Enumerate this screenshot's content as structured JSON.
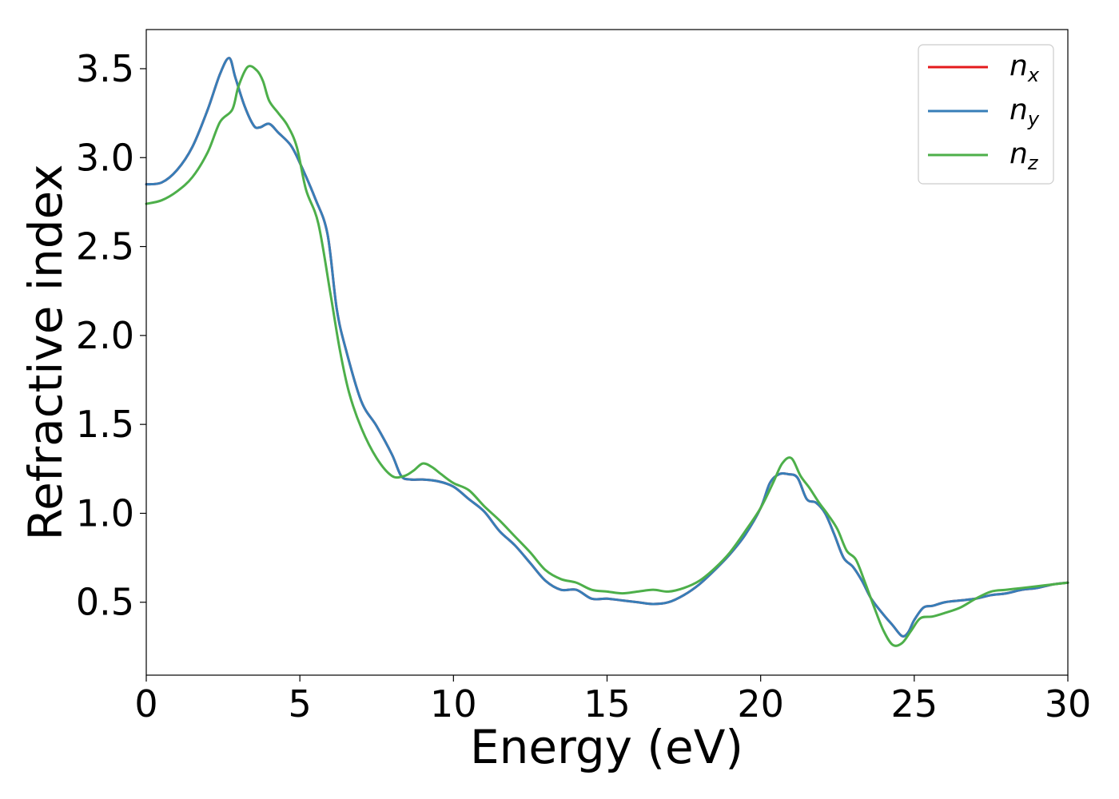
{
  "chart_data": {
    "type": "line",
    "title": "",
    "xlabel": "Energy (eV)",
    "ylabel": "Refractive index",
    "xlim": [
      0,
      30
    ],
    "ylim": [
      0.09,
      3.72
    ],
    "xticks": [
      0,
      5,
      10,
      15,
      20,
      25,
      30
    ],
    "xtick_labels": [
      "0",
      "5",
      "10",
      "15",
      "20",
      "25",
      "30"
    ],
    "yticks": [
      0.5,
      1.0,
      1.5,
      2.0,
      2.5,
      3.0,
      3.5
    ],
    "ytick_labels": [
      "0.5",
      "1.0",
      "1.5",
      "2.0",
      "2.5",
      "3.0",
      "3.5"
    ],
    "grid": false,
    "legend_position": "top-right",
    "series": [
      {
        "name": "n_x",
        "label_base": "n",
        "label_sub": "x",
        "color": "#e41a1c",
        "x": [
          0,
          0.5,
          1.0,
          1.5,
          2.0,
          2.4,
          2.7,
          2.9,
          3.2,
          3.5,
          3.7,
          4.0,
          4.3,
          4.7,
          5.0,
          5.5,
          5.9,
          6.2,
          6.5,
          7.0,
          7.5,
          8.0,
          8.3,
          8.6,
          9.0,
          9.5,
          10.0,
          10.5,
          11.0,
          11.5,
          12.0,
          12.5,
          13.0,
          13.5,
          14.0,
          14.5,
          15.0,
          15.5,
          16.0,
          16.5,
          17.0,
          17.5,
          18.0,
          18.5,
          19.0,
          19.5,
          20.0,
          20.3,
          20.6,
          20.9,
          21.2,
          21.5,
          21.8,
          22.1,
          22.4,
          22.7,
          23.0,
          23.3,
          23.6,
          24.0,
          24.3,
          24.6,
          24.8,
          25.0,
          25.3,
          25.6,
          26.0,
          26.5,
          27.0,
          27.5,
          28.0,
          28.5,
          29.0,
          29.5,
          30.0
        ],
        "y": [
          2.85,
          2.86,
          2.93,
          3.06,
          3.27,
          3.47,
          3.56,
          3.45,
          3.29,
          3.18,
          3.17,
          3.19,
          3.14,
          3.07,
          2.97,
          2.77,
          2.57,
          2.15,
          1.92,
          1.63,
          1.49,
          1.33,
          1.21,
          1.19,
          1.19,
          1.18,
          1.15,
          1.08,
          1.01,
          0.9,
          0.82,
          0.72,
          0.62,
          0.57,
          0.57,
          0.52,
          0.52,
          0.51,
          0.5,
          0.49,
          0.5,
          0.54,
          0.6,
          0.68,
          0.77,
          0.88,
          1.03,
          1.17,
          1.22,
          1.22,
          1.2,
          1.08,
          1.06,
          1.0,
          0.88,
          0.75,
          0.7,
          0.62,
          0.52,
          0.43,
          0.37,
          0.31,
          0.33,
          0.4,
          0.47,
          0.48,
          0.5,
          0.51,
          0.52,
          0.54,
          0.55,
          0.57,
          0.58,
          0.6,
          0.61
        ]
      },
      {
        "name": "n_y",
        "label_base": "n",
        "label_sub": "y",
        "color": "#377eb8",
        "x": [
          0,
          0.5,
          1.0,
          1.5,
          2.0,
          2.4,
          2.7,
          2.9,
          3.2,
          3.5,
          3.7,
          4.0,
          4.3,
          4.7,
          5.0,
          5.5,
          5.9,
          6.2,
          6.5,
          7.0,
          7.5,
          8.0,
          8.3,
          8.6,
          9.0,
          9.5,
          10.0,
          10.5,
          11.0,
          11.5,
          12.0,
          12.5,
          13.0,
          13.5,
          14.0,
          14.5,
          15.0,
          15.5,
          16.0,
          16.5,
          17.0,
          17.5,
          18.0,
          18.5,
          19.0,
          19.5,
          20.0,
          20.3,
          20.6,
          20.9,
          21.2,
          21.5,
          21.8,
          22.1,
          22.4,
          22.7,
          23.0,
          23.3,
          23.6,
          24.0,
          24.3,
          24.6,
          24.8,
          25.0,
          25.3,
          25.6,
          26.0,
          26.5,
          27.0,
          27.5,
          28.0,
          28.5,
          29.0,
          29.5,
          30.0
        ],
        "y": [
          2.85,
          2.86,
          2.93,
          3.06,
          3.27,
          3.47,
          3.56,
          3.45,
          3.29,
          3.18,
          3.17,
          3.19,
          3.14,
          3.07,
          2.97,
          2.77,
          2.57,
          2.15,
          1.92,
          1.63,
          1.49,
          1.33,
          1.21,
          1.19,
          1.19,
          1.18,
          1.15,
          1.08,
          1.01,
          0.9,
          0.82,
          0.72,
          0.62,
          0.57,
          0.57,
          0.52,
          0.52,
          0.51,
          0.5,
          0.49,
          0.5,
          0.54,
          0.6,
          0.68,
          0.77,
          0.88,
          1.03,
          1.17,
          1.22,
          1.22,
          1.2,
          1.08,
          1.06,
          1.0,
          0.88,
          0.75,
          0.7,
          0.62,
          0.52,
          0.43,
          0.37,
          0.31,
          0.33,
          0.4,
          0.47,
          0.48,
          0.5,
          0.51,
          0.52,
          0.54,
          0.55,
          0.57,
          0.58,
          0.6,
          0.61
        ]
      },
      {
        "name": "n_z",
        "label_base": "n",
        "label_sub": "z",
        "color": "#4daf4a",
        "x": [
          0,
          0.5,
          1.0,
          1.5,
          2.0,
          2.4,
          2.8,
          3.0,
          3.3,
          3.6,
          3.8,
          4.0,
          4.3,
          4.6,
          4.9,
          5.2,
          5.6,
          6.0,
          6.3,
          6.6,
          7.0,
          7.5,
          8.0,
          8.4,
          8.7,
          9.0,
          9.3,
          9.6,
          10.0,
          10.5,
          11.0,
          11.5,
          12.0,
          12.5,
          13.0,
          13.5,
          14.0,
          14.5,
          15.0,
          15.5,
          16.0,
          16.5,
          17.0,
          17.5,
          18.0,
          18.5,
          19.0,
          19.5,
          20.0,
          20.4,
          20.7,
          21.0,
          21.3,
          21.6,
          21.9,
          22.2,
          22.5,
          22.8,
          23.1,
          23.4,
          23.7,
          24.0,
          24.3,
          24.6,
          24.9,
          25.2,
          25.6,
          26.0,
          26.5,
          27.0,
          27.5,
          28.0,
          28.5,
          29.0,
          29.5,
          30.0
        ],
        "y": [
          2.74,
          2.76,
          2.81,
          2.89,
          3.03,
          3.2,
          3.27,
          3.4,
          3.51,
          3.49,
          3.43,
          3.32,
          3.25,
          3.18,
          3.06,
          2.82,
          2.63,
          2.23,
          1.92,
          1.68,
          1.48,
          1.31,
          1.21,
          1.21,
          1.24,
          1.28,
          1.26,
          1.22,
          1.17,
          1.13,
          1.04,
          0.96,
          0.87,
          0.78,
          0.68,
          0.63,
          0.61,
          0.57,
          0.56,
          0.55,
          0.56,
          0.57,
          0.56,
          0.58,
          0.62,
          0.69,
          0.78,
          0.9,
          1.03,
          1.17,
          1.28,
          1.31,
          1.21,
          1.14,
          1.06,
          0.99,
          0.91,
          0.79,
          0.74,
          0.61,
          0.47,
          0.34,
          0.26,
          0.27,
          0.34,
          0.41,
          0.42,
          0.44,
          0.47,
          0.52,
          0.56,
          0.57,
          0.58,
          0.59,
          0.6,
          0.61
        ]
      }
    ]
  }
}
